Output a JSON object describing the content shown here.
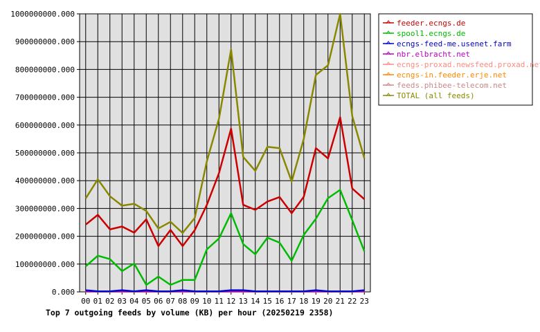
{
  "chart_data": {
    "type": "line",
    "title": "Top 7 outgoing feeds by volume (KB) per hour (20250219 2358)",
    "xlabel": "",
    "ylabel": "",
    "ylim": [
      0,
      1000000000
    ],
    "yticks": [
      0,
      100000000,
      200000000,
      300000000,
      400000000,
      500000000,
      600000000,
      700000000,
      800000000,
      900000000,
      1000000000
    ],
    "ytick_labels": [
      "0.000",
      "100000000.000",
      "200000000.000",
      "300000000.000",
      "400000000.000",
      "500000000.000",
      "600000000.000",
      "700000000.000",
      "800000000.000",
      "900000000.000",
      "1000000000.000"
    ],
    "categories": [
      "00",
      "01",
      "02",
      "03",
      "04",
      "05",
      "06",
      "07",
      "08",
      "09",
      "10",
      "11",
      "12",
      "13",
      "14",
      "15",
      "16",
      "17",
      "18",
      "19",
      "20",
      "21",
      "22",
      "23"
    ],
    "grid": true,
    "legend_position": "right",
    "series": [
      {
        "name": "feeder.ecngs.de",
        "color": "#cc0000",
        "values": [
          242000000,
          277000000,
          225000000,
          235000000,
          213000000,
          261000000,
          165000000,
          223000000,
          165000000,
          222000000,
          313000000,
          427000000,
          587000000,
          313000000,
          295000000,
          325000000,
          341000000,
          283000000,
          342000000,
          517000000,
          480000000,
          628000000,
          372000000,
          333000000
        ]
      },
      {
        "name": "spool1.ecngs.de",
        "color": "#00bb00",
        "values": [
          92000000,
          130000000,
          118000000,
          75000000,
          102000000,
          25000000,
          55000000,
          25000000,
          43000000,
          43000000,
          153000000,
          192000000,
          283000000,
          172000000,
          135000000,
          195000000,
          177000000,
          112000000,
          205000000,
          263000000,
          337000000,
          367000000,
          258000000,
          146000000
        ]
      },
      {
        "name": "ecngs-feed-me.usenet.farm",
        "color": "#0000cc",
        "values": [
          6000000,
          2000000,
          2000000,
          6000000,
          2000000,
          6000000,
          2000000,
          2000000,
          6000000,
          2000000,
          2000000,
          2000000,
          6000000,
          6000000,
          2000000,
          2000000,
          2000000,
          2000000,
          2000000,
          6000000,
          2000000,
          2000000,
          2000000,
          6000000
        ]
      },
      {
        "name": "nbr.elbracht.net",
        "color": "#bb00bb",
        "values": [
          2000000,
          2000000,
          2000000,
          2000000,
          2000000,
          2000000,
          2000000,
          2000000,
          2000000,
          2000000,
          2000000,
          2000000,
          2000000,
          2000000,
          2000000,
          2000000,
          2000000,
          2000000,
          2000000,
          2000000,
          2000000,
          2000000,
          2000000,
          2000000
        ]
      },
      {
        "name": "ecngs-proxad.newsfeed.proxad.net",
        "color": "#ff8a80",
        "values": [
          1000000,
          1000000,
          1000000,
          1000000,
          1000000,
          1000000,
          1000000,
          1000000,
          1000000,
          1000000,
          1000000,
          1000000,
          1000000,
          1000000,
          1000000,
          1000000,
          1000000,
          1000000,
          1000000,
          1000000,
          1000000,
          1000000,
          1000000,
          1000000
        ]
      },
      {
        "name": "ecngs-in.feeder.erje.net",
        "color": "#ff8800",
        "values": [
          1000000,
          1000000,
          1000000,
          1000000,
          1000000,
          1000000,
          1000000,
          1000000,
          1000000,
          1000000,
          1000000,
          1000000,
          1000000,
          1000000,
          1000000,
          1000000,
          1000000,
          1000000,
          1000000,
          1000000,
          1000000,
          1000000,
          1000000,
          1000000
        ]
      },
      {
        "name": "feeds.phibee-telecom.net",
        "color": "#cc8888",
        "values": [
          1000000,
          1000000,
          1000000,
          1000000,
          1000000,
          1000000,
          1000000,
          1000000,
          1000000,
          1000000,
          1000000,
          1000000,
          1000000,
          1000000,
          1000000,
          1000000,
          1000000,
          1000000,
          1000000,
          1000000,
          1000000,
          1000000,
          1000000,
          1000000
        ]
      },
      {
        "name": "TOTAL (all feeds)",
        "color": "#888800",
        "values": [
          336000000,
          405000000,
          344000000,
          310000000,
          317000000,
          291000000,
          228000000,
          252000000,
          212000000,
          266000000,
          470000000,
          623000000,
          872000000,
          485000000,
          435000000,
          522000000,
          517000000,
          397000000,
          550000000,
          780000000,
          815000000,
          1000000000,
          632000000,
          480000000
        ]
      }
    ]
  }
}
